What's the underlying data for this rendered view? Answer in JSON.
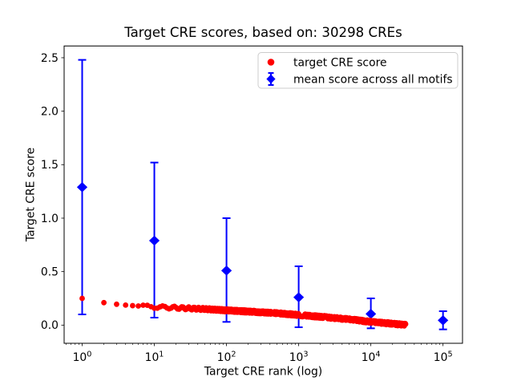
{
  "figure": {
    "title": "Target CRE scores, based on: 30298 CREs"
  },
  "chart_data": {
    "type": "scatter",
    "title": "Target CRE scores, based on: 30298 CREs",
    "xlabel": "Target CRE rank (log)",
    "ylabel": "Target CRE score",
    "x_scale": "log",
    "total_cres": 30298,
    "xlim_log10": [
      -0.25,
      5.27
    ],
    "ylim": [
      -0.17,
      2.61
    ],
    "x_major_tick_exponents": [
      0,
      1,
      2,
      3,
      4,
      5
    ],
    "x_tick_base": "10",
    "y_ticks": [
      "0.0",
      "0.5",
      "1.0",
      "1.5",
      "2.0",
      "2.5"
    ],
    "grid": false,
    "legend": {
      "position": "upper right",
      "border_color": "#cccccc",
      "background": "#ffffff"
    },
    "series": [
      {
        "name": "target CRE score",
        "type": "scatter",
        "marker": "circle",
        "color": "#ff0000",
        "n_points": 30298,
        "rank_range": [
          1,
          30298
        ],
        "sampled_points": {
          "ranks": [
            1,
            2,
            3,
            4,
            5,
            7,
            10,
            20,
            50,
            100,
            200,
            500,
            1000,
            2000,
            5000,
            10000,
            20000,
            30298
          ],
          "scores": [
            0.25,
            0.21,
            0.195,
            0.187,
            0.182,
            0.176,
            0.17,
            0.162,
            0.15,
            0.138,
            0.127,
            0.112,
            0.095,
            0.078,
            0.054,
            0.03,
            0.013,
            0.002
          ]
        }
      },
      {
        "name": "mean score across all motifs",
        "type": "errorbar",
        "marker": "diamond",
        "color": "#0000ff",
        "points": [
          {
            "rank": 1,
            "mean": 1.29,
            "lo": 0.1,
            "hi": 2.48
          },
          {
            "rank": 10,
            "mean": 0.79,
            "lo": 0.07,
            "hi": 1.52
          },
          {
            "rank": 100,
            "mean": 0.51,
            "lo": 0.03,
            "hi": 1.0
          },
          {
            "rank": 1000,
            "mean": 0.26,
            "lo": -0.02,
            "hi": 0.55
          },
          {
            "rank": 10000,
            "mean": 0.105,
            "lo": -0.03,
            "hi": 0.25
          },
          {
            "rank": 100000,
            "mean": 0.045,
            "lo": -0.04,
            "hi": 0.13
          }
        ]
      }
    ]
  }
}
